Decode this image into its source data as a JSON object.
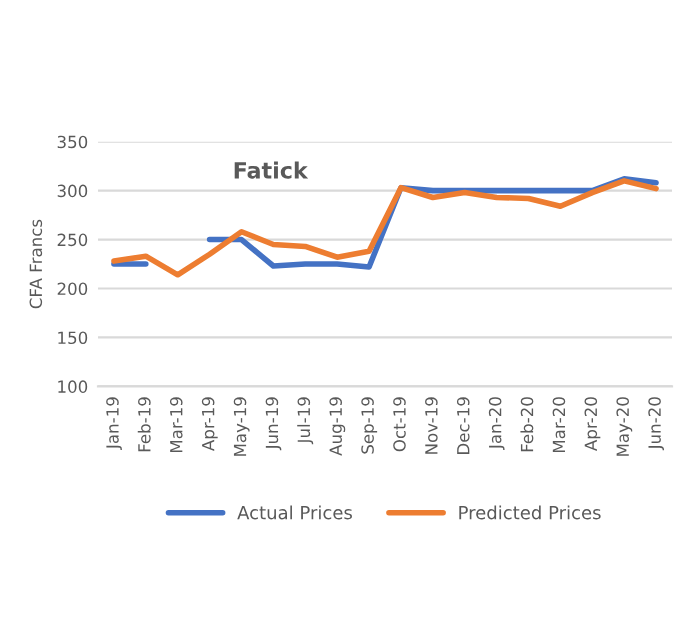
{
  "chart_data": {
    "type": "line",
    "title": "Fatick",
    "ylabel": "CFA Francs",
    "categories": [
      "Jan-19",
      "Feb-19",
      "Mar-19",
      "Apr-19",
      "May-19",
      "Jun-19",
      "Jul-19",
      "Aug-19",
      "Sep-19",
      "Oct-19",
      "Nov-19",
      "Dec-19",
      "Jan-20",
      "Feb-20",
      "Mar-20",
      "Apr-20",
      "May-20",
      "Jun-20"
    ],
    "series": [
      {
        "name": "Actual Prices",
        "color": "#4472c4",
        "values": [
          225,
          225,
          null,
          250,
          250,
          223,
          225,
          225,
          222,
          303,
          300,
          300,
          300,
          300,
          300,
          300,
          312,
          308
        ]
      },
      {
        "name": "Predicted Prices",
        "color": "#ed7d31",
        "values": [
          228,
          233,
          214,
          235,
          258,
          245,
          243,
          232,
          238,
          303,
          293,
          298,
          293,
          292,
          284,
          298,
          310,
          302
        ]
      }
    ],
    "ylim": [
      100,
      350
    ],
    "yticks": [
      100,
      150,
      200,
      250,
      300,
      350
    ],
    "grid": "y",
    "legend": "bottom",
    "line_style": "solid"
  }
}
